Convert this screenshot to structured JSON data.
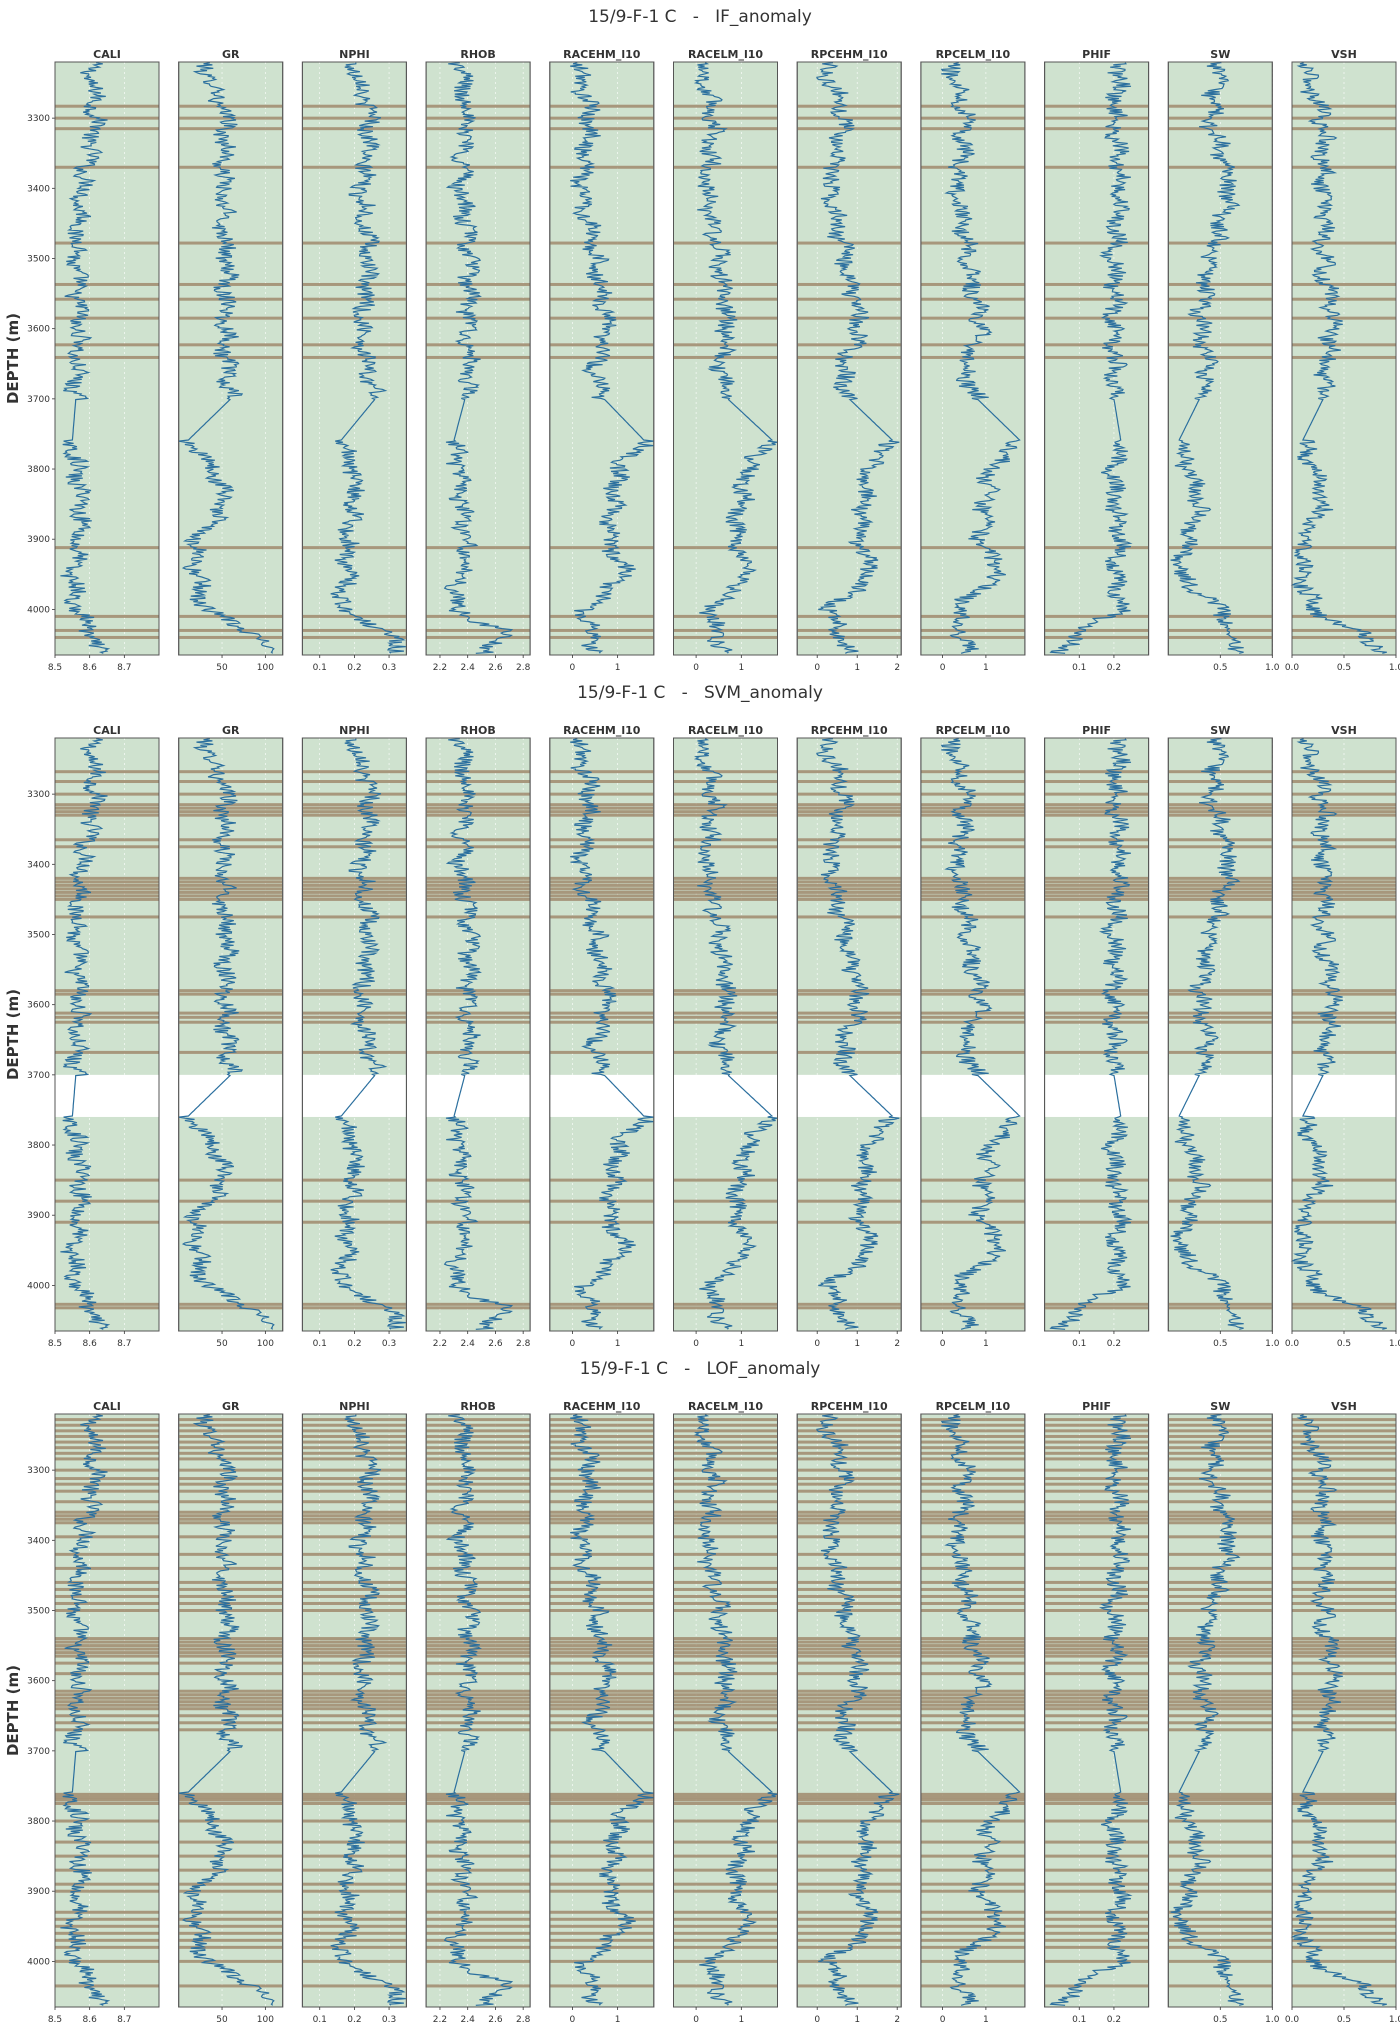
{
  "figure": {
    "colors": {
      "background": "#ffffff",
      "track_fill": "#cfe2cf",
      "track_border": "#555555",
      "curve": "#2b6f9e",
      "anomaly_band": "#a08a6d",
      "text": "#333333",
      "grid": "#ffffff"
    },
    "depth_ticks": [
      "3300",
      "3400",
      "3500",
      "3600",
      "3700",
      "3800",
      "3900",
      "4000"
    ]
  },
  "chart_data": [
    {
      "type": "line",
      "title": "15/9-F-1 C   -   IF_anomaly",
      "ylabel": "DEPTH (m)",
      "ylim": [
        4065,
        3220
      ],
      "y_inverted": true,
      "tracks": [
        {
          "name": "CALI",
          "xlim": [
            8.5,
            8.8
          ],
          "ticks": [
            "8.5",
            "8.6",
            "8.7"
          ]
        },
        {
          "name": "GR",
          "xlim": [
            0,
            120
          ],
          "ticks": [
            "50",
            "100"
          ]
        },
        {
          "name": "NPHI",
          "xlim": [
            0.05,
            0.35
          ],
          "ticks": [
            "0.1",
            "0.2",
            "0.3"
          ]
        },
        {
          "name": "RHOB",
          "xlim": [
            2.1,
            2.85
          ],
          "ticks": [
            "2.2",
            "2.4",
            "2.6",
            "2.8"
          ]
        },
        {
          "name": "RACEHM_l10",
          "xlim": [
            -0.5,
            1.8
          ],
          "ticks": [
            "0",
            "1"
          ]
        },
        {
          "name": "RACELM_l10",
          "xlim": [
            -0.5,
            1.8
          ],
          "ticks": [
            "0",
            "1"
          ]
        },
        {
          "name": "RPCEHM_l10",
          "xlim": [
            -0.5,
            2.1
          ],
          "ticks": [
            "0",
            "1",
            "2"
          ]
        },
        {
          "name": "RPCELM_l10",
          "xlim": [
            -0.5,
            1.9
          ],
          "ticks": [
            "0",
            "1"
          ]
        },
        {
          "name": "PHIF",
          "xlim": [
            0,
            0.3
          ],
          "ticks": [
            "0.1",
            "0.2"
          ]
        },
        {
          "name": "SW",
          "xlim": [
            0,
            1
          ],
          "ticks": [
            "0.5",
            "1.0"
          ]
        },
        {
          "name": "VSH",
          "xlim": [
            0,
            1
          ],
          "ticks": [
            "0.0",
            "0.5",
            "1.0"
          ]
        }
      ],
      "curve_nodes": {
        "depths": [
          3225,
          3300,
          3400,
          3500,
          3600,
          3660,
          3700,
          3760,
          3800,
          3850,
          3900,
          3950,
          4000,
          4030,
          4060
        ],
        "CALI": [
          8.6,
          8.62,
          8.58,
          8.56,
          8.57,
          8.56,
          8.56,
          8.55,
          8.56,
          8.58,
          8.57,
          8.55,
          8.56,
          8.6,
          8.62
        ],
        "GR": [
          30,
          55,
          50,
          55,
          55,
          55,
          60,
          10,
          40,
          55,
          20,
          20,
          30,
          80,
          110
        ],
        "NPHI": [
          0.2,
          0.25,
          0.22,
          0.24,
          0.22,
          0.24,
          0.26,
          0.16,
          0.2,
          0.2,
          0.18,
          0.18,
          0.16,
          0.29,
          0.33
        ],
        "RHOB": [
          2.35,
          2.4,
          2.35,
          2.42,
          2.4,
          2.4,
          2.38,
          2.3,
          2.35,
          2.35,
          2.4,
          2.35,
          2.3,
          2.65,
          2.55
        ],
        "RACEHM_l10": [
          0.1,
          0.4,
          0.2,
          0.5,
          0.8,
          0.5,
          0.7,
          1.6,
          1.0,
          0.9,
          0.8,
          1.2,
          0.3,
          0.4,
          0.5
        ],
        "RACELM_l10": [
          0.1,
          0.4,
          0.2,
          0.5,
          0.7,
          0.5,
          0.7,
          1.7,
          1.1,
          1.0,
          0.8,
          1.2,
          0.3,
          0.4,
          0.6
        ],
        "RPCEHM_l10": [
          0.2,
          0.7,
          0.3,
          0.7,
          1.1,
          0.6,
          0.8,
          1.9,
          1.2,
          1.2,
          1.0,
          1.4,
          0.3,
          0.5,
          0.7
        ],
        "RPCELM_l10": [
          0.2,
          0.6,
          0.3,
          0.6,
          0.9,
          0.5,
          0.8,
          1.8,
          1.1,
          1.0,
          0.9,
          1.3,
          0.3,
          0.4,
          0.6
        ],
        "PHIF": [
          0.22,
          0.2,
          0.22,
          0.2,
          0.2,
          0.2,
          0.2,
          0.22,
          0.2,
          0.2,
          0.22,
          0.2,
          0.22,
          0.1,
          0.05
        ],
        "SW": [
          0.5,
          0.4,
          0.6,
          0.4,
          0.3,
          0.4,
          0.3,
          0.1,
          0.2,
          0.3,
          0.2,
          0.1,
          0.5,
          0.6,
          0.7
        ],
        "VSH": [
          0.1,
          0.3,
          0.3,
          0.3,
          0.4,
          0.3,
          0.3,
          0.1,
          0.2,
          0.3,
          0.1,
          0.1,
          0.2,
          0.6,
          0.9
        ]
      },
      "anomaly_depths": [
        3283,
        3300,
        3315,
        3370,
        3478,
        3537,
        3558,
        3585,
        3623,
        3641,
        3912,
        4010,
        4030,
        4040
      ]
    },
    {
      "type": "line",
      "title": "15/9-F-1 C   -   SVM_anomaly",
      "ylabel": "DEPTH (m)",
      "ylim": [
        4065,
        3220
      ],
      "y_inverted": true,
      "missing_interval": [
        3700,
        3760
      ],
      "tracks": [
        {
          "name": "CALI",
          "xlim": [
            8.5,
            8.8
          ],
          "ticks": [
            "8.5",
            "8.6",
            "8.7"
          ]
        },
        {
          "name": "GR",
          "xlim": [
            0,
            120
          ],
          "ticks": [
            "50",
            "100"
          ]
        },
        {
          "name": "NPHI",
          "xlim": [
            0.05,
            0.35
          ],
          "ticks": [
            "0.1",
            "0.2",
            "0.3"
          ]
        },
        {
          "name": "RHOB",
          "xlim": [
            2.1,
            2.85
          ],
          "ticks": [
            "2.2",
            "2.4",
            "2.6",
            "2.8"
          ]
        },
        {
          "name": "RACEHM_l10",
          "xlim": [
            -0.5,
            1.8
          ],
          "ticks": [
            "0",
            "1"
          ]
        },
        {
          "name": "RACELM_l10",
          "xlim": [
            -0.5,
            1.8
          ],
          "ticks": [
            "0",
            "1"
          ]
        },
        {
          "name": "RPCEHM_l10",
          "xlim": [
            -0.5,
            2.1
          ],
          "ticks": [
            "0",
            "1",
            "2"
          ]
        },
        {
          "name": "RPCELM_l10",
          "xlim": [
            -0.5,
            1.9
          ],
          "ticks": [
            "0",
            "1"
          ]
        },
        {
          "name": "PHIF",
          "xlim": [
            0,
            0.3
          ],
          "ticks": [
            "0.1",
            "0.2"
          ]
        },
        {
          "name": "SW",
          "xlim": [
            0,
            1
          ],
          "ticks": [
            "0.5",
            "1.0"
          ]
        },
        {
          "name": "VSH",
          "xlim": [
            0,
            1
          ],
          "ticks": [
            "0.0",
            "0.5",
            "1.0"
          ]
        }
      ],
      "curve_nodes": {
        "depths": [
          3225,
          3300,
          3400,
          3500,
          3600,
          3660,
          3700,
          3760,
          3800,
          3850,
          3900,
          3950,
          4000,
          4030,
          4060
        ],
        "CALI": [
          8.6,
          8.62,
          8.58,
          8.56,
          8.57,
          8.56,
          8.56,
          8.55,
          8.56,
          8.58,
          8.57,
          8.55,
          8.56,
          8.6,
          8.62
        ],
        "GR": [
          30,
          55,
          50,
          55,
          55,
          55,
          60,
          10,
          40,
          55,
          20,
          20,
          30,
          80,
          110
        ],
        "NPHI": [
          0.2,
          0.25,
          0.22,
          0.24,
          0.22,
          0.24,
          0.26,
          0.16,
          0.2,
          0.2,
          0.18,
          0.18,
          0.16,
          0.29,
          0.33
        ],
        "RHOB": [
          2.35,
          2.4,
          2.35,
          2.42,
          2.4,
          2.4,
          2.38,
          2.3,
          2.35,
          2.35,
          2.4,
          2.35,
          2.3,
          2.65,
          2.55
        ],
        "RACEHM_l10": [
          0.1,
          0.4,
          0.2,
          0.5,
          0.8,
          0.5,
          0.7,
          1.6,
          1.0,
          0.9,
          0.8,
          1.2,
          0.3,
          0.4,
          0.5
        ],
        "RACELM_l10": [
          0.1,
          0.4,
          0.2,
          0.5,
          0.7,
          0.5,
          0.7,
          1.7,
          1.1,
          1.0,
          0.8,
          1.2,
          0.3,
          0.4,
          0.6
        ],
        "RPCEHM_l10": [
          0.2,
          0.7,
          0.3,
          0.7,
          1.1,
          0.6,
          0.8,
          1.9,
          1.2,
          1.2,
          1.0,
          1.4,
          0.3,
          0.5,
          0.7
        ],
        "RPCELM_l10": [
          0.2,
          0.6,
          0.3,
          0.6,
          0.9,
          0.5,
          0.8,
          1.8,
          1.1,
          1.0,
          0.9,
          1.3,
          0.3,
          0.4,
          0.6
        ],
        "PHIF": [
          0.22,
          0.2,
          0.22,
          0.2,
          0.2,
          0.2,
          0.2,
          0.22,
          0.2,
          0.2,
          0.22,
          0.2,
          0.22,
          0.1,
          0.05
        ],
        "SW": [
          0.5,
          0.4,
          0.6,
          0.4,
          0.3,
          0.4,
          0.3,
          0.1,
          0.2,
          0.3,
          0.2,
          0.1,
          0.5,
          0.6,
          0.7
        ],
        "VSH": [
          0.1,
          0.3,
          0.3,
          0.3,
          0.4,
          0.3,
          0.3,
          0.1,
          0.2,
          0.3,
          0.1,
          0.1,
          0.2,
          0.6,
          0.9
        ]
      },
      "anomaly_depths": [
        3268,
        3282,
        3300,
        3315,
        3320,
        3325,
        3330,
        3365,
        3375,
        3420,
        3425,
        3430,
        3435,
        3440,
        3445,
        3450,
        3475,
        3580,
        3585,
        3612,
        3618,
        3625,
        3668,
        3850,
        3880,
        3910,
        4027,
        4032
      ]
    },
    {
      "type": "line",
      "title": "15/9-F-1 C   -   LOF_anomaly",
      "ylabel": "DEPTH (m)",
      "ylim": [
        4065,
        3220
      ],
      "y_inverted": true,
      "tracks": [
        {
          "name": "CALI",
          "xlim": [
            8.5,
            8.8
          ],
          "ticks": [
            "8.5",
            "8.6",
            "8.7"
          ]
        },
        {
          "name": "GR",
          "xlim": [
            0,
            120
          ],
          "ticks": [
            "50",
            "100"
          ]
        },
        {
          "name": "NPHI",
          "xlim": [
            0.05,
            0.35
          ],
          "ticks": [
            "0.1",
            "0.2",
            "0.3"
          ]
        },
        {
          "name": "RHOB",
          "xlim": [
            2.1,
            2.85
          ],
          "ticks": [
            "2.2",
            "2.4",
            "2.6",
            "2.8"
          ]
        },
        {
          "name": "RACEHM_l10",
          "xlim": [
            -0.5,
            1.8
          ],
          "ticks": [
            "0",
            "1"
          ]
        },
        {
          "name": "RACELM_l10",
          "xlim": [
            -0.5,
            1.8
          ],
          "ticks": [
            "0",
            "1"
          ]
        },
        {
          "name": "RPCEHM_l10",
          "xlim": [
            -0.5,
            2.1
          ],
          "ticks": [
            "0",
            "1",
            "2"
          ]
        },
        {
          "name": "RPCELM_l10",
          "xlim": [
            -0.5,
            1.9
          ],
          "ticks": [
            "0",
            "1"
          ]
        },
        {
          "name": "PHIF",
          "xlim": [
            0,
            0.3
          ],
          "ticks": [
            "0.1",
            "0.2"
          ]
        },
        {
          "name": "SW",
          "xlim": [
            0,
            1
          ],
          "ticks": [
            "0.5",
            "1.0"
          ]
        },
        {
          "name": "VSH",
          "xlim": [
            0,
            1
          ],
          "ticks": [
            "0.0",
            "0.5",
            "1.0"
          ]
        }
      ],
      "curve_nodes": {
        "depths": [
          3225,
          3300,
          3400,
          3500,
          3600,
          3660,
          3700,
          3760,
          3800,
          3850,
          3900,
          3950,
          4000,
          4030,
          4060
        ],
        "CALI": [
          8.6,
          8.62,
          8.58,
          8.56,
          8.57,
          8.56,
          8.56,
          8.55,
          8.56,
          8.58,
          8.57,
          8.55,
          8.56,
          8.6,
          8.62
        ],
        "GR": [
          30,
          55,
          50,
          55,
          55,
          55,
          60,
          10,
          40,
          55,
          20,
          20,
          30,
          80,
          110
        ],
        "NPHI": [
          0.2,
          0.25,
          0.22,
          0.24,
          0.22,
          0.24,
          0.26,
          0.16,
          0.2,
          0.2,
          0.18,
          0.18,
          0.16,
          0.29,
          0.33
        ],
        "RHOB": [
          2.35,
          2.4,
          2.35,
          2.42,
          2.4,
          2.4,
          2.38,
          2.3,
          2.35,
          2.35,
          2.4,
          2.35,
          2.3,
          2.65,
          2.55
        ],
        "RACEHM_l10": [
          0.1,
          0.4,
          0.2,
          0.5,
          0.8,
          0.5,
          0.7,
          1.6,
          1.0,
          0.9,
          0.8,
          1.2,
          0.3,
          0.4,
          0.5
        ],
        "RACELM_l10": [
          0.1,
          0.4,
          0.2,
          0.5,
          0.7,
          0.5,
          0.7,
          1.7,
          1.1,
          1.0,
          0.8,
          1.2,
          0.3,
          0.4,
          0.6
        ],
        "RPCEHM_l10": [
          0.2,
          0.7,
          0.3,
          0.7,
          1.1,
          0.6,
          0.8,
          1.9,
          1.2,
          1.2,
          1.0,
          1.4,
          0.3,
          0.5,
          0.7
        ],
        "RPCELM_l10": [
          0.2,
          0.6,
          0.3,
          0.6,
          0.9,
          0.5,
          0.8,
          1.8,
          1.1,
          1.0,
          0.9,
          1.3,
          0.3,
          0.4,
          0.6
        ],
        "PHIF": [
          0.22,
          0.2,
          0.22,
          0.2,
          0.2,
          0.2,
          0.2,
          0.22,
          0.2,
          0.2,
          0.22,
          0.2,
          0.22,
          0.1,
          0.05
        ],
        "SW": [
          0.5,
          0.4,
          0.6,
          0.4,
          0.3,
          0.4,
          0.3,
          0.1,
          0.2,
          0.3,
          0.2,
          0.1,
          0.5,
          0.6,
          0.7
        ],
        "VSH": [
          0.1,
          0.3,
          0.3,
          0.3,
          0.4,
          0.3,
          0.3,
          0.1,
          0.2,
          0.3,
          0.1,
          0.1,
          0.2,
          0.6,
          0.9
        ]
      },
      "anomaly_depths": [
        3228,
        3236,
        3244,
        3252,
        3260,
        3268,
        3276,
        3284,
        3300,
        3312,
        3320,
        3330,
        3345,
        3360,
        3365,
        3370,
        3375,
        3395,
        3420,
        3440,
        3460,
        3470,
        3480,
        3490,
        3500,
        3540,
        3545,
        3550,
        3555,
        3560,
        3565,
        3575,
        3590,
        3615,
        3620,
        3625,
        3630,
        3635,
        3640,
        3650,
        3660,
        3670,
        3762,
        3766,
        3770,
        3775,
        3800,
        3830,
        3850,
        3870,
        3890,
        3900,
        3930,
        3940,
        3950,
        3960,
        3970,
        3980,
        4000,
        4035
      ]
    }
  ]
}
